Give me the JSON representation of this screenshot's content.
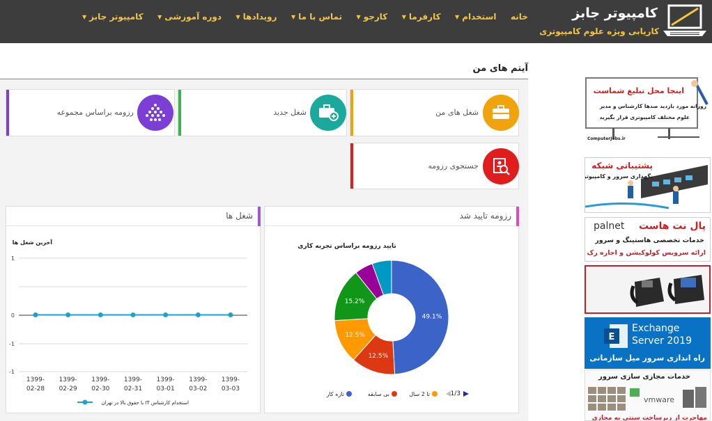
{
  "header": {
    "logo_title": "کامپیوتر جابز",
    "logo_subtitle": "کاریابی ویژه علوم کامپیوتری",
    "nav": [
      {
        "label": "خانه",
        "dropdown": false
      },
      {
        "label": "استخدام",
        "dropdown": true
      },
      {
        "label": "کارفرما",
        "dropdown": true
      },
      {
        "label": "کارجو",
        "dropdown": true
      },
      {
        "label": "تماس با ما",
        "dropdown": true
      },
      {
        "label": "رویدادها",
        "dropdown": true
      },
      {
        "label": "دوره آموزشی",
        "dropdown": true
      },
      {
        "label": "کامپیوتر جابز",
        "dropdown": true
      }
    ]
  },
  "page_title": "آیتم های من",
  "tiles": {
    "my_jobs": "شغل های من",
    "new_job": "شغل جدید",
    "resume_collection": "رزومه براساس مجموعه",
    "search_resume": "جستجوی رزومه"
  },
  "colors": {
    "orange": "#f0a30a",
    "teal": "#1aa99c",
    "purple": "#7c3fd6",
    "red": "#e01d1d",
    "accent_blue": "#2ba8c7"
  },
  "panels": {
    "resume_title": "رزومه تایید شد",
    "jobs_title": "شغل ها"
  },
  "donut": {
    "title": "تایید رزومه براساس تجربه کاری",
    "pager": "1/3",
    "legend": [
      "تازه کار",
      "بی سابقه",
      "تا 2 سال"
    ]
  },
  "line": {
    "title": "آخرین شغل ها",
    "legend": "با حقوق بالا در تهران IT استخدام کارشناس"
  },
  "chart_data": [
    {
      "type": "pie",
      "title": "تایید رزومه براساس تجربه کاری",
      "slices": [
        {
          "label": "تازه کار",
          "value": 49.1,
          "color": "#3c64c8",
          "text": "49.1%"
        },
        {
          "label": "بی سابقه",
          "value": 12.5,
          "color": "#dc3912",
          "text": "12.5%"
        },
        {
          "label": "تا 2 سال",
          "value": 12.5,
          "color": "#ff9900",
          "text": "12.5%"
        },
        {
          "label": "",
          "value": 15.2,
          "color": "#109618",
          "text": "15.2%"
        },
        {
          "label": "",
          "value": 5.2,
          "color": "#990099",
          "text": ""
        },
        {
          "label": "",
          "value": 5.5,
          "color": "#0099c6",
          "text": ""
        }
      ]
    },
    {
      "type": "line",
      "title": "آخرین شغل ها",
      "categories": [
        "1399-02-28",
        "1399-02-29",
        "1399-02-30",
        "1399-02-31",
        "1399-03-01",
        "1399-03-02",
        "1399-03-03"
      ],
      "series": [
        {
          "name": "با حقوق بالا در تهران IT استخدام کارشناس",
          "values": [
            0,
            0,
            0,
            0,
            0,
            0,
            0
          ]
        }
      ],
      "ylim": [
        -1,
        1
      ],
      "yticks": [
        "1",
        "0",
        "-1",
        "-1"
      ],
      "grid": true
    }
  ],
  "ads": [
    {
      "line1": "اینجا محل تبلیغ شماست",
      "line2": "روزانه مورد بازدید صدها کارشناس و مدیر",
      "line3": "علوم مختلف کامپیوتری قرار بگیرید",
      "site": "ComputerJobs.ir"
    },
    {
      "line1": "پشتیبانی شبکه",
      "line2": "نگهداری سرور و کامپیوتر"
    },
    {
      "brand": "palnet",
      "line1": "پال نت هاست",
      "line2": "خدمات تخصصی هاستینگ و سرور",
      "line3": "ارائه سرویس کولوکیشن و اجاره رک"
    },
    {
      "name": "ip-phones"
    },
    {
      "line1": "Exchange",
      "line2": "Server 2019",
      "line3": "راه اندازی سرور میل سازمانی"
    },
    {
      "line1": "خدمات مجازی سازی سرور",
      "brand": "vmware",
      "line2": "مهاجرت از زیرساخت سنتی به مجازی"
    }
  ]
}
